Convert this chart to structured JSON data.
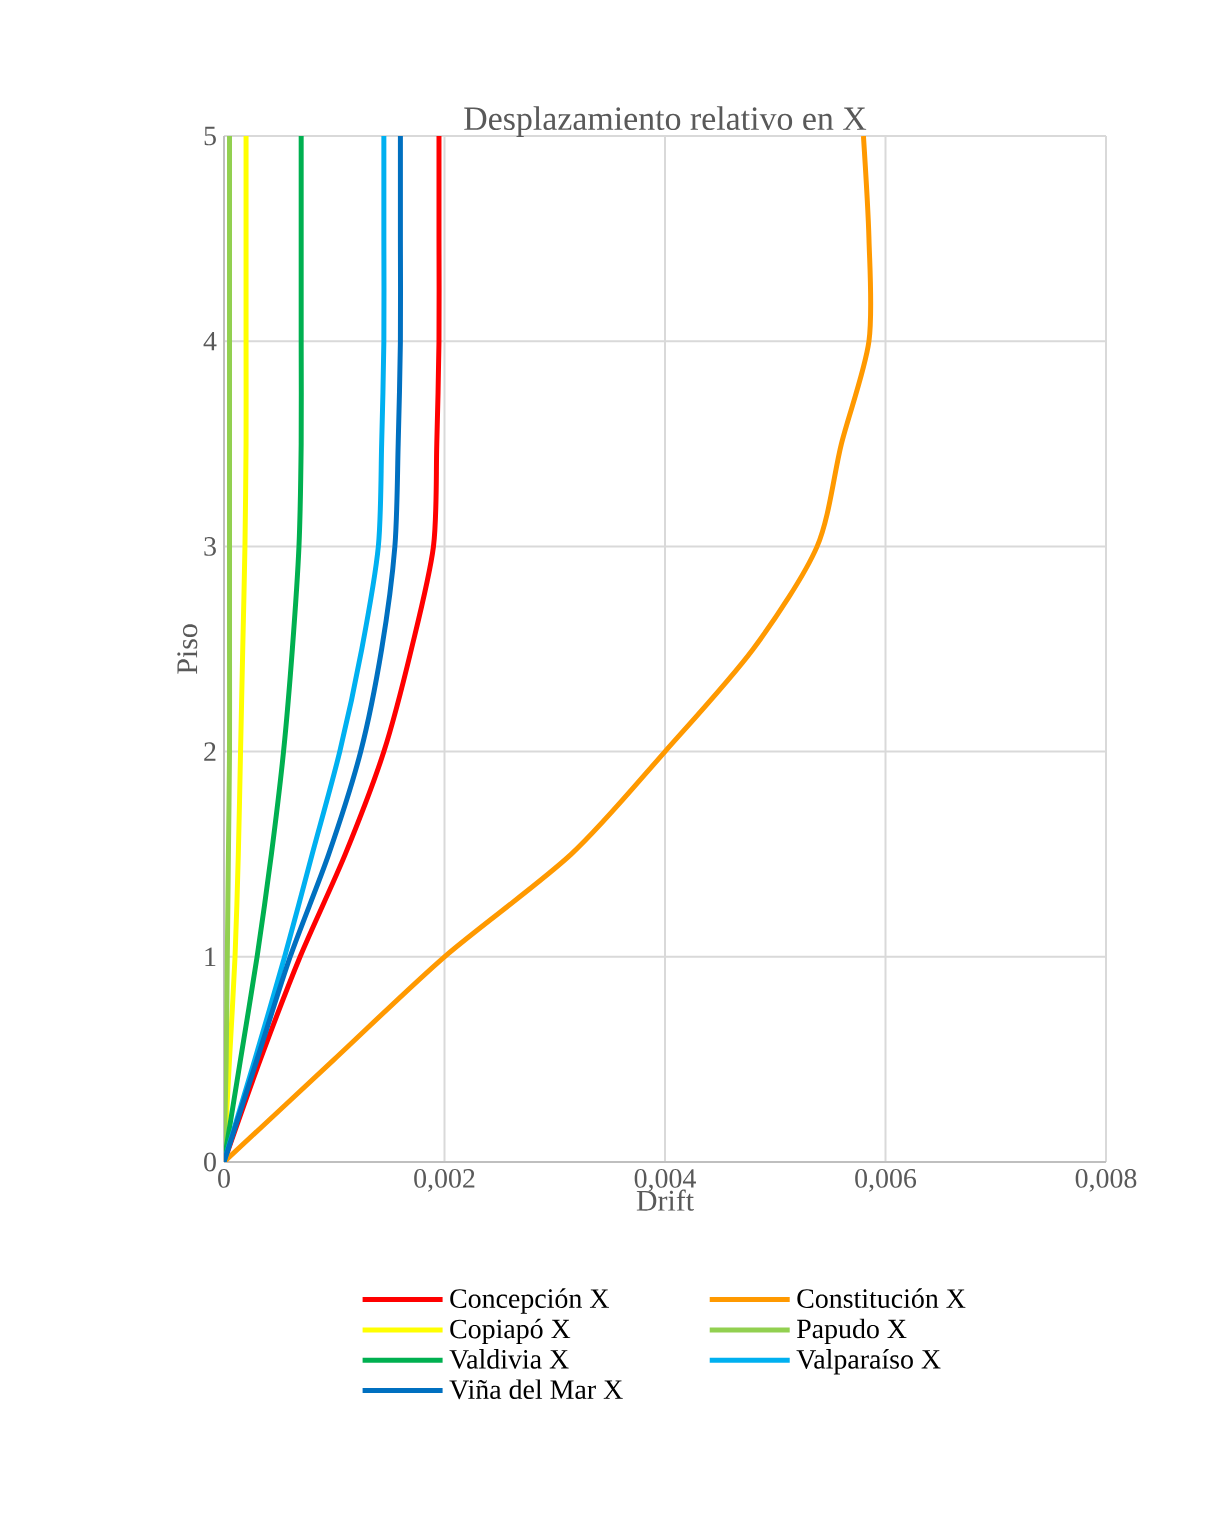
{
  "chart_data": {
    "type": "line",
    "title": "Desplazamiento relativo en X",
    "xlabel": "Drift",
    "ylabel": "Piso",
    "xlim": [
      0,
      0.008
    ],
    "ylim": [
      0,
      5
    ],
    "xticks": [
      0,
      {
        "value": 0.002,
        "label": "0,002"
      },
      {
        "value": 0.004,
        "label": "0,004"
      },
      {
        "value": 0.006,
        "label": "0,006"
      },
      {
        "value": 0.008,
        "label": "0,008"
      }
    ],
    "yticks": [
      0,
      1,
      2,
      3,
      4,
      5
    ],
    "grid": true,
    "legend": "bottom",
    "marker": "none",
    "line_style": "solid",
    "series": [
      {
        "name": "Concepción X",
        "color": "#ff0000",
        "x": [
          0,
          0.00033,
          0.00069,
          0.0011,
          0.00145,
          0.0017,
          0.0019,
          0.00193,
          0.00195,
          0.00195,
          0.00195
        ],
        "values": [
          0,
          0.5,
          1,
          1.5,
          2,
          2.5,
          3,
          3.5,
          4,
          4.5,
          5
        ]
      },
      {
        "name": "Constitución X",
        "color": "#ff9900",
        "x": [
          0,
          0.001,
          0.002,
          0.00315,
          0.004,
          0.0048,
          0.00538,
          0.0056,
          0.00585,
          0.00585,
          0.0058
        ],
        "values": [
          0,
          0.5,
          1,
          1.5,
          2,
          2.5,
          3,
          3.5,
          4,
          4.5,
          5
        ]
      },
      {
        "name": "Copiapó X",
        "color": "#ffff00",
        "x": [
          0,
          5e-05,
          0.0001,
          0.00013,
          0.00015,
          0.00017,
          0.00019,
          0.0002,
          0.0002,
          0.0002,
          0.0002
        ],
        "values": [
          0,
          0.5,
          1,
          1.5,
          2,
          2.5,
          3,
          3.5,
          4,
          4.5,
          5
        ]
      },
      {
        "name": "Papudo X",
        "color": "#92d050",
        "x": [
          0,
          2e-05,
          3e-05,
          4e-05,
          5e-05,
          5e-05,
          5e-05,
          5e-05,
          5e-05,
          5e-05,
          5e-05
        ],
        "values": [
          0,
          0.5,
          1,
          1.5,
          2,
          2.5,
          3,
          3.5,
          4,
          4.5,
          5
        ]
      },
      {
        "name": "Valdivia X",
        "color": "#00b050",
        "x": [
          0,
          0.00015,
          0.0003,
          0.00043,
          0.00054,
          0.00062,
          0.00068,
          0.0007,
          0.0007,
          0.0007,
          0.0007
        ],
        "values": [
          0,
          0.5,
          1,
          1.5,
          2,
          2.5,
          3,
          3.5,
          4,
          4.5,
          5
        ]
      },
      {
        "name": "Valparaíso X",
        "color": "#00b0f0",
        "x": [
          0,
          0.00028,
          0.00055,
          0.0008,
          0.00105,
          0.00125,
          0.0014,
          0.00143,
          0.00145,
          0.00145,
          0.00145
        ],
        "values": [
          0,
          0.5,
          1,
          1.5,
          2,
          2.5,
          3,
          3.5,
          4,
          4.5,
          5
        ]
      },
      {
        "name": "Viña del Mar X",
        "color": "#0070c0",
        "x": [
          0,
          0.0003,
          0.0006,
          0.00095,
          0.00124,
          0.00143,
          0.00155,
          0.00158,
          0.0016,
          0.0016,
          0.0016
        ],
        "values": [
          0,
          0.5,
          1,
          1.5,
          2,
          2.5,
          3,
          3.5,
          4,
          4.5,
          5
        ]
      }
    ]
  }
}
